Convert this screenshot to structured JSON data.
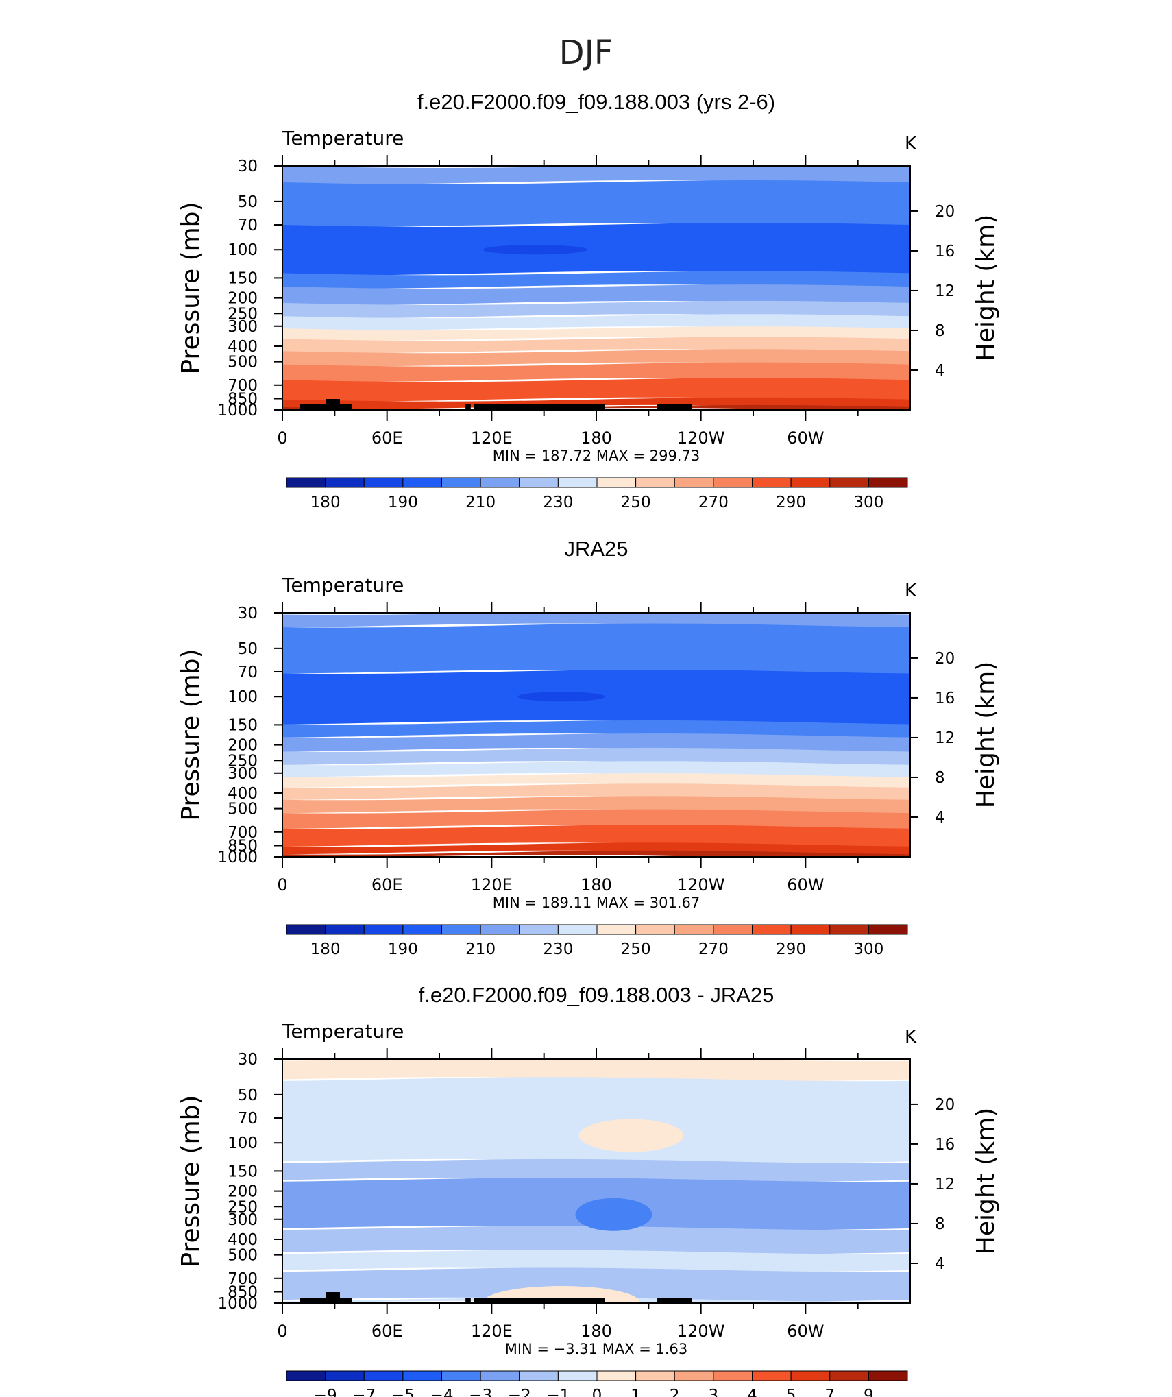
{
  "page_title": "DJF",
  "colormap_temp": [
    "#0a1a8c",
    "#0c2ec2",
    "#1546e8",
    "#1e5cf5",
    "#4682f5",
    "#7ba2f2",
    "#a9c4f5",
    "#d5e6fb",
    "#fde8d6",
    "#fcc9ad",
    "#f9a782",
    "#f7845c",
    "#f4542a",
    "#e23b14",
    "#b82a0d",
    "#8c1206"
  ],
  "colormap_diff": [
    "#0a1a8c",
    "#0c2ec2",
    "#1546e8",
    "#1e5cf5",
    "#4682f5",
    "#7ba2f2",
    "#a9c4f5",
    "#d5e6fb",
    "#fde8d6",
    "#fcc9ad",
    "#f9a782",
    "#f7845c",
    "#f4542a",
    "#e23b14",
    "#b82a0d",
    "#8c1206"
  ],
  "chart_data": [
    {
      "type": "heatmap",
      "title": "f.e20.F2000.f09_f09.188.003 (yrs 2-6)",
      "left_label": "Temperature",
      "right_label": "K",
      "xlabel": "",
      "ylabel": "Pressure (mb)",
      "ylabel_right": "Height (km)",
      "x_ticks": [
        "0",
        "60E",
        "120E",
        "180",
        "120W",
        "60W"
      ],
      "y_ticks": [
        "30",
        "50",
        "70",
        "100",
        "150",
        "200",
        "250",
        "300",
        "400",
        "500",
        "700",
        "850",
        "1000"
      ],
      "y_ticks_right": [
        "20",
        "16",
        "12",
        "8",
        "4"
      ],
      "ylim": [
        1000,
        30
      ],
      "log_pressure_axis": true,
      "stats": "MIN  =  187.72   MAX  =  299.73",
      "colorbar_labels": [
        "180",
        "190",
        "210",
        "230",
        "250",
        "270",
        "290",
        "300"
      ],
      "levels_by_pressure": [
        {
          "p_top": 30,
          "p_bottom": 38,
          "class": 5
        },
        {
          "p_top": 38,
          "p_bottom": 70,
          "class": 4
        },
        {
          "p_top": 70,
          "p_bottom": 140,
          "class": 3
        },
        {
          "p_top": 140,
          "p_bottom": 170,
          "class": 4
        },
        {
          "p_top": 170,
          "p_bottom": 215,
          "class": 5
        },
        {
          "p_top": 215,
          "p_bottom": 260,
          "class": 6
        },
        {
          "p_top": 260,
          "p_bottom": 310,
          "class": 7
        },
        {
          "p_top": 310,
          "p_bottom": 360,
          "class": 8
        },
        {
          "p_top": 360,
          "p_bottom": 430,
          "class": 9
        },
        {
          "p_top": 430,
          "p_bottom": 520,
          "class": 10
        },
        {
          "p_top": 520,
          "p_bottom": 650,
          "class": 11
        },
        {
          "p_top": 650,
          "p_bottom": 860,
          "class": 12
        },
        {
          "p_top": 860,
          "p_bottom": 960,
          "class": 13
        },
        {
          "p_top": 960,
          "p_bottom": 1000,
          "class": 14
        }
      ],
      "min_feature": {
        "class": 2,
        "lon_center": 145,
        "lon_halfwidth": 30,
        "pressure": 100
      }
    },
    {
      "type": "heatmap",
      "title": "JRA25",
      "left_label": "Temperature",
      "right_label": "K",
      "xlabel": "",
      "ylabel": "Pressure (mb)",
      "ylabel_right": "Height (km)",
      "x_ticks": [
        "0",
        "60E",
        "120E",
        "180",
        "120W",
        "60W"
      ],
      "y_ticks": [
        "30",
        "50",
        "70",
        "100",
        "150",
        "200",
        "250",
        "300",
        "400",
        "500",
        "700",
        "850",
        "1000"
      ],
      "y_ticks_right": [
        "20",
        "16",
        "12",
        "8",
        "4"
      ],
      "ylim": [
        1000,
        30
      ],
      "log_pressure_axis": true,
      "stats": "MIN  =  189.11   MAX  =  301.67",
      "colorbar_labels": [
        "180",
        "190",
        "210",
        "230",
        "250",
        "270",
        "290",
        "300"
      ],
      "levels_by_pressure": [
        {
          "p_top": 30,
          "p_bottom": 36,
          "class": 5
        },
        {
          "p_top": 36,
          "p_bottom": 70,
          "class": 4
        },
        {
          "p_top": 70,
          "p_bottom": 145,
          "class": 3
        },
        {
          "p_top": 145,
          "p_bottom": 175,
          "class": 4
        },
        {
          "p_top": 175,
          "p_bottom": 215,
          "class": 5
        },
        {
          "p_top": 215,
          "p_bottom": 260,
          "class": 6
        },
        {
          "p_top": 260,
          "p_bottom": 310,
          "class": 7
        },
        {
          "p_top": 310,
          "p_bottom": 360,
          "class": 8
        },
        {
          "p_top": 360,
          "p_bottom": 430,
          "class": 9
        },
        {
          "p_top": 430,
          "p_bottom": 520,
          "class": 10
        },
        {
          "p_top": 520,
          "p_bottom": 650,
          "class": 11
        },
        {
          "p_top": 650,
          "p_bottom": 840,
          "class": 12
        },
        {
          "p_top": 840,
          "p_bottom": 940,
          "class": 13
        },
        {
          "p_top": 940,
          "p_bottom": 1000,
          "class": 14
        }
      ],
      "min_feature": {
        "class": 2,
        "lon_center": 160,
        "lon_halfwidth": 25,
        "pressure": 100
      }
    },
    {
      "type": "heatmap",
      "title": "f.e20.F2000.f09_f09.188.003 - JRA25",
      "left_label": "Temperature",
      "right_label": "K",
      "xlabel": "",
      "ylabel": "Pressure (mb)",
      "ylabel_right": "Height (km)",
      "x_ticks": [
        "0",
        "60E",
        "120E",
        "180",
        "120W",
        "60W"
      ],
      "y_ticks": [
        "30",
        "50",
        "70",
        "100",
        "150",
        "200",
        "250",
        "300",
        "400",
        "500",
        "700",
        "850",
        "1000"
      ],
      "y_ticks_right": [
        "20",
        "16",
        "12",
        "8",
        "4"
      ],
      "ylim": [
        1000,
        30
      ],
      "log_pressure_axis": true,
      "stats": "MIN  =    −3.31   MAX  =      1.63",
      "colorbar_labels": [
        "−9",
        "−7",
        "−5",
        "−4",
        "−3",
        "−2",
        "−1",
        "0",
        "1",
        "2",
        "3",
        "4",
        "5",
        "7",
        "9"
      ],
      "levels_by_pressure": [
        {
          "p_top": 30,
          "p_bottom": 40,
          "class": 8
        },
        {
          "p_top": 40,
          "p_bottom": 130,
          "class": 7
        },
        {
          "p_top": 130,
          "p_bottom": 170,
          "class": 6
        },
        {
          "p_top": 170,
          "p_bottom": 340,
          "class": 5
        },
        {
          "p_top": 340,
          "p_bottom": 480,
          "class": 6
        },
        {
          "p_top": 480,
          "p_bottom": 620,
          "class": 7
        },
        {
          "p_top": 620,
          "p_bottom": 950,
          "class": 6
        },
        {
          "p_top": 950,
          "p_bottom": 1000,
          "class": 7
        }
      ],
      "features": [
        {
          "class": 8,
          "lon_center": 200,
          "lon_halfwidth": 30,
          "pressure": 90
        },
        {
          "class": 4,
          "lon_center": 190,
          "lon_halfwidth": 22,
          "pressure": 280
        },
        {
          "class": 7,
          "lon_center": 140,
          "lon_halfwidth": 14,
          "pressure": 70
        },
        {
          "class": 8,
          "lon_center": 160,
          "lon_halfwidth": 45,
          "pressure": 990
        }
      ]
    }
  ]
}
